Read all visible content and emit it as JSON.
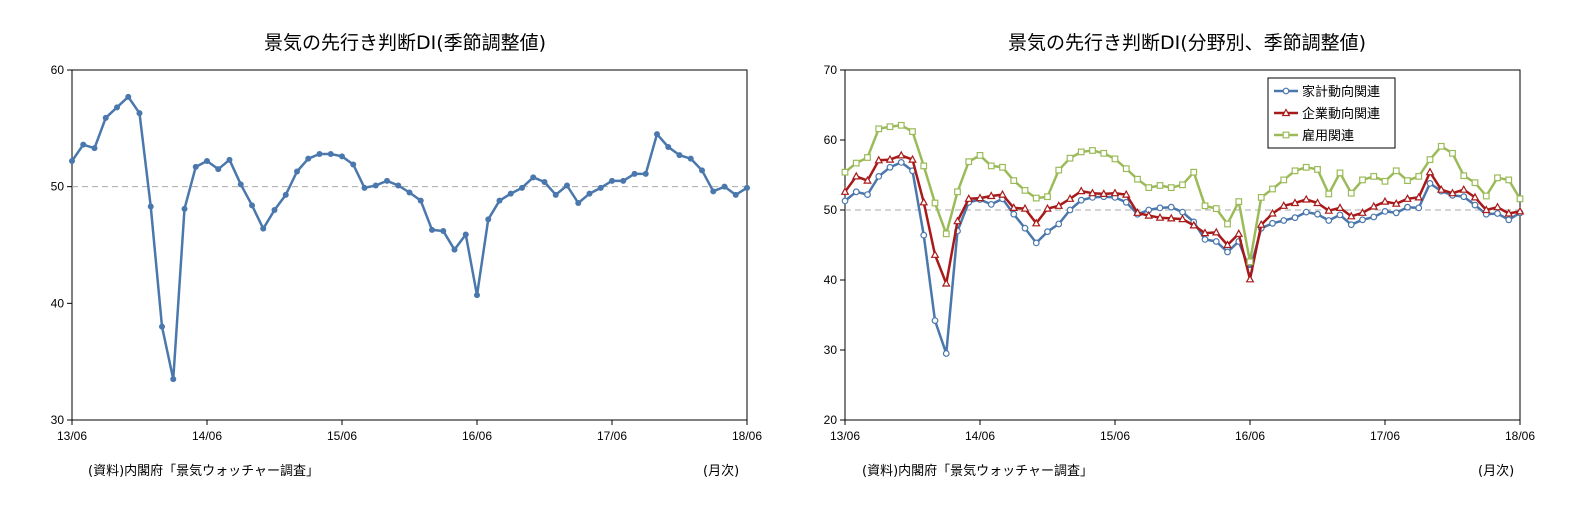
{
  "charts": [
    {
      "title": "景気の先行き判断DI(季節調整値)",
      "source": "(資料)内閣府「景気ウォッチャー調査」",
      "unit": "(月次)"
    },
    {
      "title": "景気の先行き判断DI(分野別、季節調整値)",
      "source": "(資料)内閣府「景気ウォッチャー調査」",
      "unit": "(月次)"
    }
  ],
  "chart_data": [
    {
      "type": "line",
      "title": "景気の先行き判断DI(季節調整値)",
      "xlabel": "",
      "ylabel": "",
      "x_ticks": [
        "13/06",
        "14/06",
        "15/06",
        "16/06",
        "17/06",
        "18/06"
      ],
      "y_ticks": [
        30,
        40,
        50,
        60
      ],
      "ylim": [
        30,
        60
      ],
      "reference_line": 50,
      "grid": false,
      "series": [
        {
          "color": "#4a77ac",
          "values": [
            52.2,
            53.6,
            53.3,
            55.9,
            56.8,
            57.7,
            56.3,
            48.3,
            38.0,
            33.5,
            48.1,
            51.7,
            52.2,
            51.5,
            52.3,
            50.2,
            48.4,
            46.4,
            48.0,
            49.3,
            51.3,
            52.4,
            52.8,
            52.8,
            52.6,
            51.9,
            49.9,
            50.1,
            50.5,
            50.1,
            49.5,
            48.8,
            46.3,
            46.2,
            44.6,
            45.9,
            40.7,
            47.2,
            48.8,
            49.4,
            49.9,
            50.8,
            50.4,
            49.3,
            50.1,
            48.6,
            49.4,
            49.9,
            50.5,
            50.5,
            51.1,
            51.1,
            54.5,
            53.4,
            52.7,
            52.4,
            51.4,
            49.6,
            50.0,
            49.3,
            49.9
          ]
        }
      ]
    },
    {
      "type": "line",
      "title": "景気の先行き判断DI(分野別、季節調整値)",
      "xlabel": "",
      "ylabel": "",
      "x_ticks": [
        "13/06",
        "14/06",
        "15/06",
        "16/06",
        "17/06",
        "18/06"
      ],
      "y_ticks": [
        20,
        30,
        40,
        50,
        60,
        70
      ],
      "ylim": [
        20,
        70
      ],
      "reference_line": 50,
      "grid": false,
      "legend_position": "top-right",
      "series": [
        {
          "name": "家計動向関連",
          "color": "#4a77ac",
          "marker": "circle",
          "values": [
            51.3,
            52.6,
            52.2,
            54.8,
            56.1,
            56.8,
            55.6,
            46.4,
            34.2,
            29.5,
            47.0,
            51.1,
            51.5,
            50.8,
            51.6,
            49.4,
            47.4,
            45.3,
            46.9,
            48.0,
            50.0,
            51.4,
            51.8,
            51.9,
            51.8,
            51.1,
            49.4,
            50.0,
            50.3,
            50.4,
            49.7,
            48.3,
            45.8,
            45.5,
            44.0,
            45.5,
            41.4,
            47.4,
            48.1,
            48.5,
            48.9,
            49.7,
            49.4,
            48.5,
            49.3,
            47.9,
            48.6,
            49.0,
            49.8,
            49.6,
            50.4,
            50.3,
            53.8,
            52.7,
            52.1,
            51.9,
            50.7,
            49.4,
            49.5,
            48.6,
            49.6
          ]
        },
        {
          "name": "企業動向関連",
          "color": "#a81a1a",
          "marker": "triangle",
          "values": [
            52.6,
            54.8,
            54.2,
            57.1,
            57.2,
            57.8,
            57.2,
            51.1,
            43.6,
            39.5,
            48.4,
            51.6,
            51.7,
            52.0,
            52.2,
            50.3,
            50.2,
            48.1,
            50.2,
            50.6,
            51.6,
            52.7,
            52.4,
            52.3,
            52.4,
            52.2,
            49.6,
            49.2,
            48.9,
            48.8,
            48.7,
            47.8,
            46.7,
            46.8,
            45.0,
            46.6,
            40.1,
            47.9,
            49.5,
            50.6,
            51.0,
            51.5,
            51.0,
            49.9,
            50.3,
            49.1,
            49.6,
            50.5,
            51.2,
            50.9,
            51.6,
            51.8,
            55.4,
            52.9,
            52.4,
            52.9,
            51.8,
            50.0,
            50.4,
            49.5,
            49.8
          ]
        },
        {
          "name": "雇用関連",
          "color": "#9bbb59",
          "marker": "square",
          "values": [
            55.4,
            56.7,
            57.5,
            61.6,
            61.9,
            62.1,
            61.2,
            56.3,
            51.0,
            46.6,
            52.6,
            56.9,
            57.8,
            56.3,
            56.1,
            54.2,
            52.8,
            51.7,
            51.9,
            55.7,
            57.4,
            58.3,
            58.5,
            58.1,
            57.3,
            55.9,
            54.4,
            53.2,
            53.5,
            53.2,
            53.6,
            55.4,
            50.6,
            50.2,
            48.0,
            51.2,
            42.6,
            51.8,
            53.0,
            54.3,
            55.6,
            56.1,
            55.8,
            52.3,
            55.3,
            52.4,
            54.3,
            54.8,
            54.1,
            55.6,
            54.2,
            54.8,
            57.2,
            59.1,
            58.1,
            54.9,
            53.9,
            52.0,
            54.6,
            54.3,
            51.6
          ]
        }
      ]
    }
  ]
}
